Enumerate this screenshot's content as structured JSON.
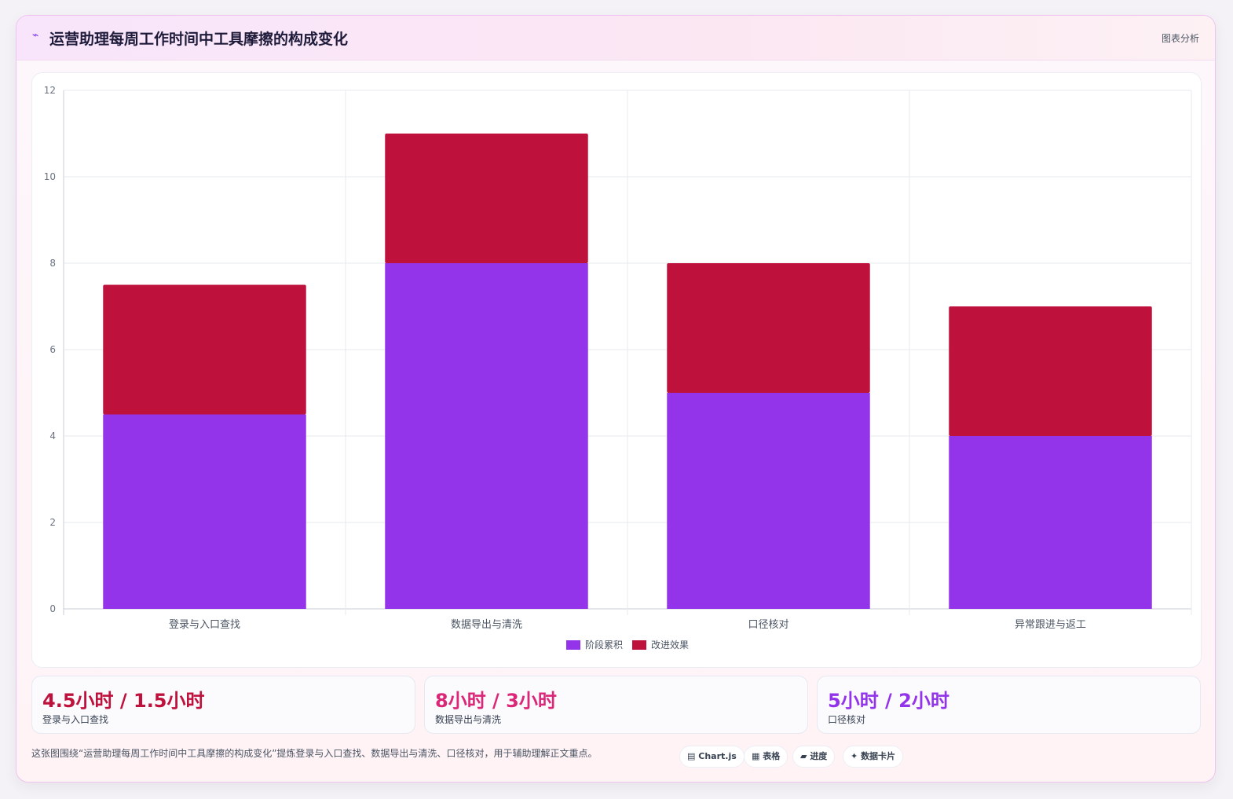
{
  "header": {
    "icon": "chart-line-icon",
    "title": "运营助理每周工作时间中工具摩擦的构成变化",
    "tag": "图表分析"
  },
  "chart_data": {
    "type": "bar",
    "stacked": true,
    "categories": [
      "登录与入口查找",
      "数据导出与清洗",
      "口径核对",
      "异常跟进与返工"
    ],
    "series": [
      {
        "name": "阶段累积",
        "values": [
          4.5,
          8,
          5,
          4
        ],
        "color": "#9333ea"
      },
      {
        "name": "改进效果",
        "values": [
          3,
          3,
          3,
          3
        ],
        "color": "#be123c"
      }
    ],
    "ylim": [
      0,
      12
    ],
    "yticks": [
      0,
      2,
      4,
      6,
      8,
      10,
      12
    ],
    "grid": true,
    "legend": "bottom"
  },
  "stats": [
    {
      "value": "4.5小时 / 1.5小时",
      "label": "登录与入口查找",
      "color": "#be123c"
    },
    {
      "value": "8小时 / 3小时",
      "label": "数据导出与清洗",
      "color": "#db2777"
    },
    {
      "value": "5小时 / 2小时",
      "label": "口径核对",
      "color": "#9333ea"
    }
  ],
  "footer": {
    "text": "这张图围绕“运营助理每周工作时间中工具摩擦的构成变化”提炼登录与入口查找、数据导出与清洗、口径核对，用于辅助理解正文重点。"
  },
  "chips": [
    {
      "icon": "▤",
      "label": "Chart.js"
    },
    {
      "icon": "▦",
      "label": "表格"
    },
    {
      "icon": "▰",
      "label": "进度"
    },
    {
      "icon": "✦",
      "label": "数据卡片"
    }
  ]
}
